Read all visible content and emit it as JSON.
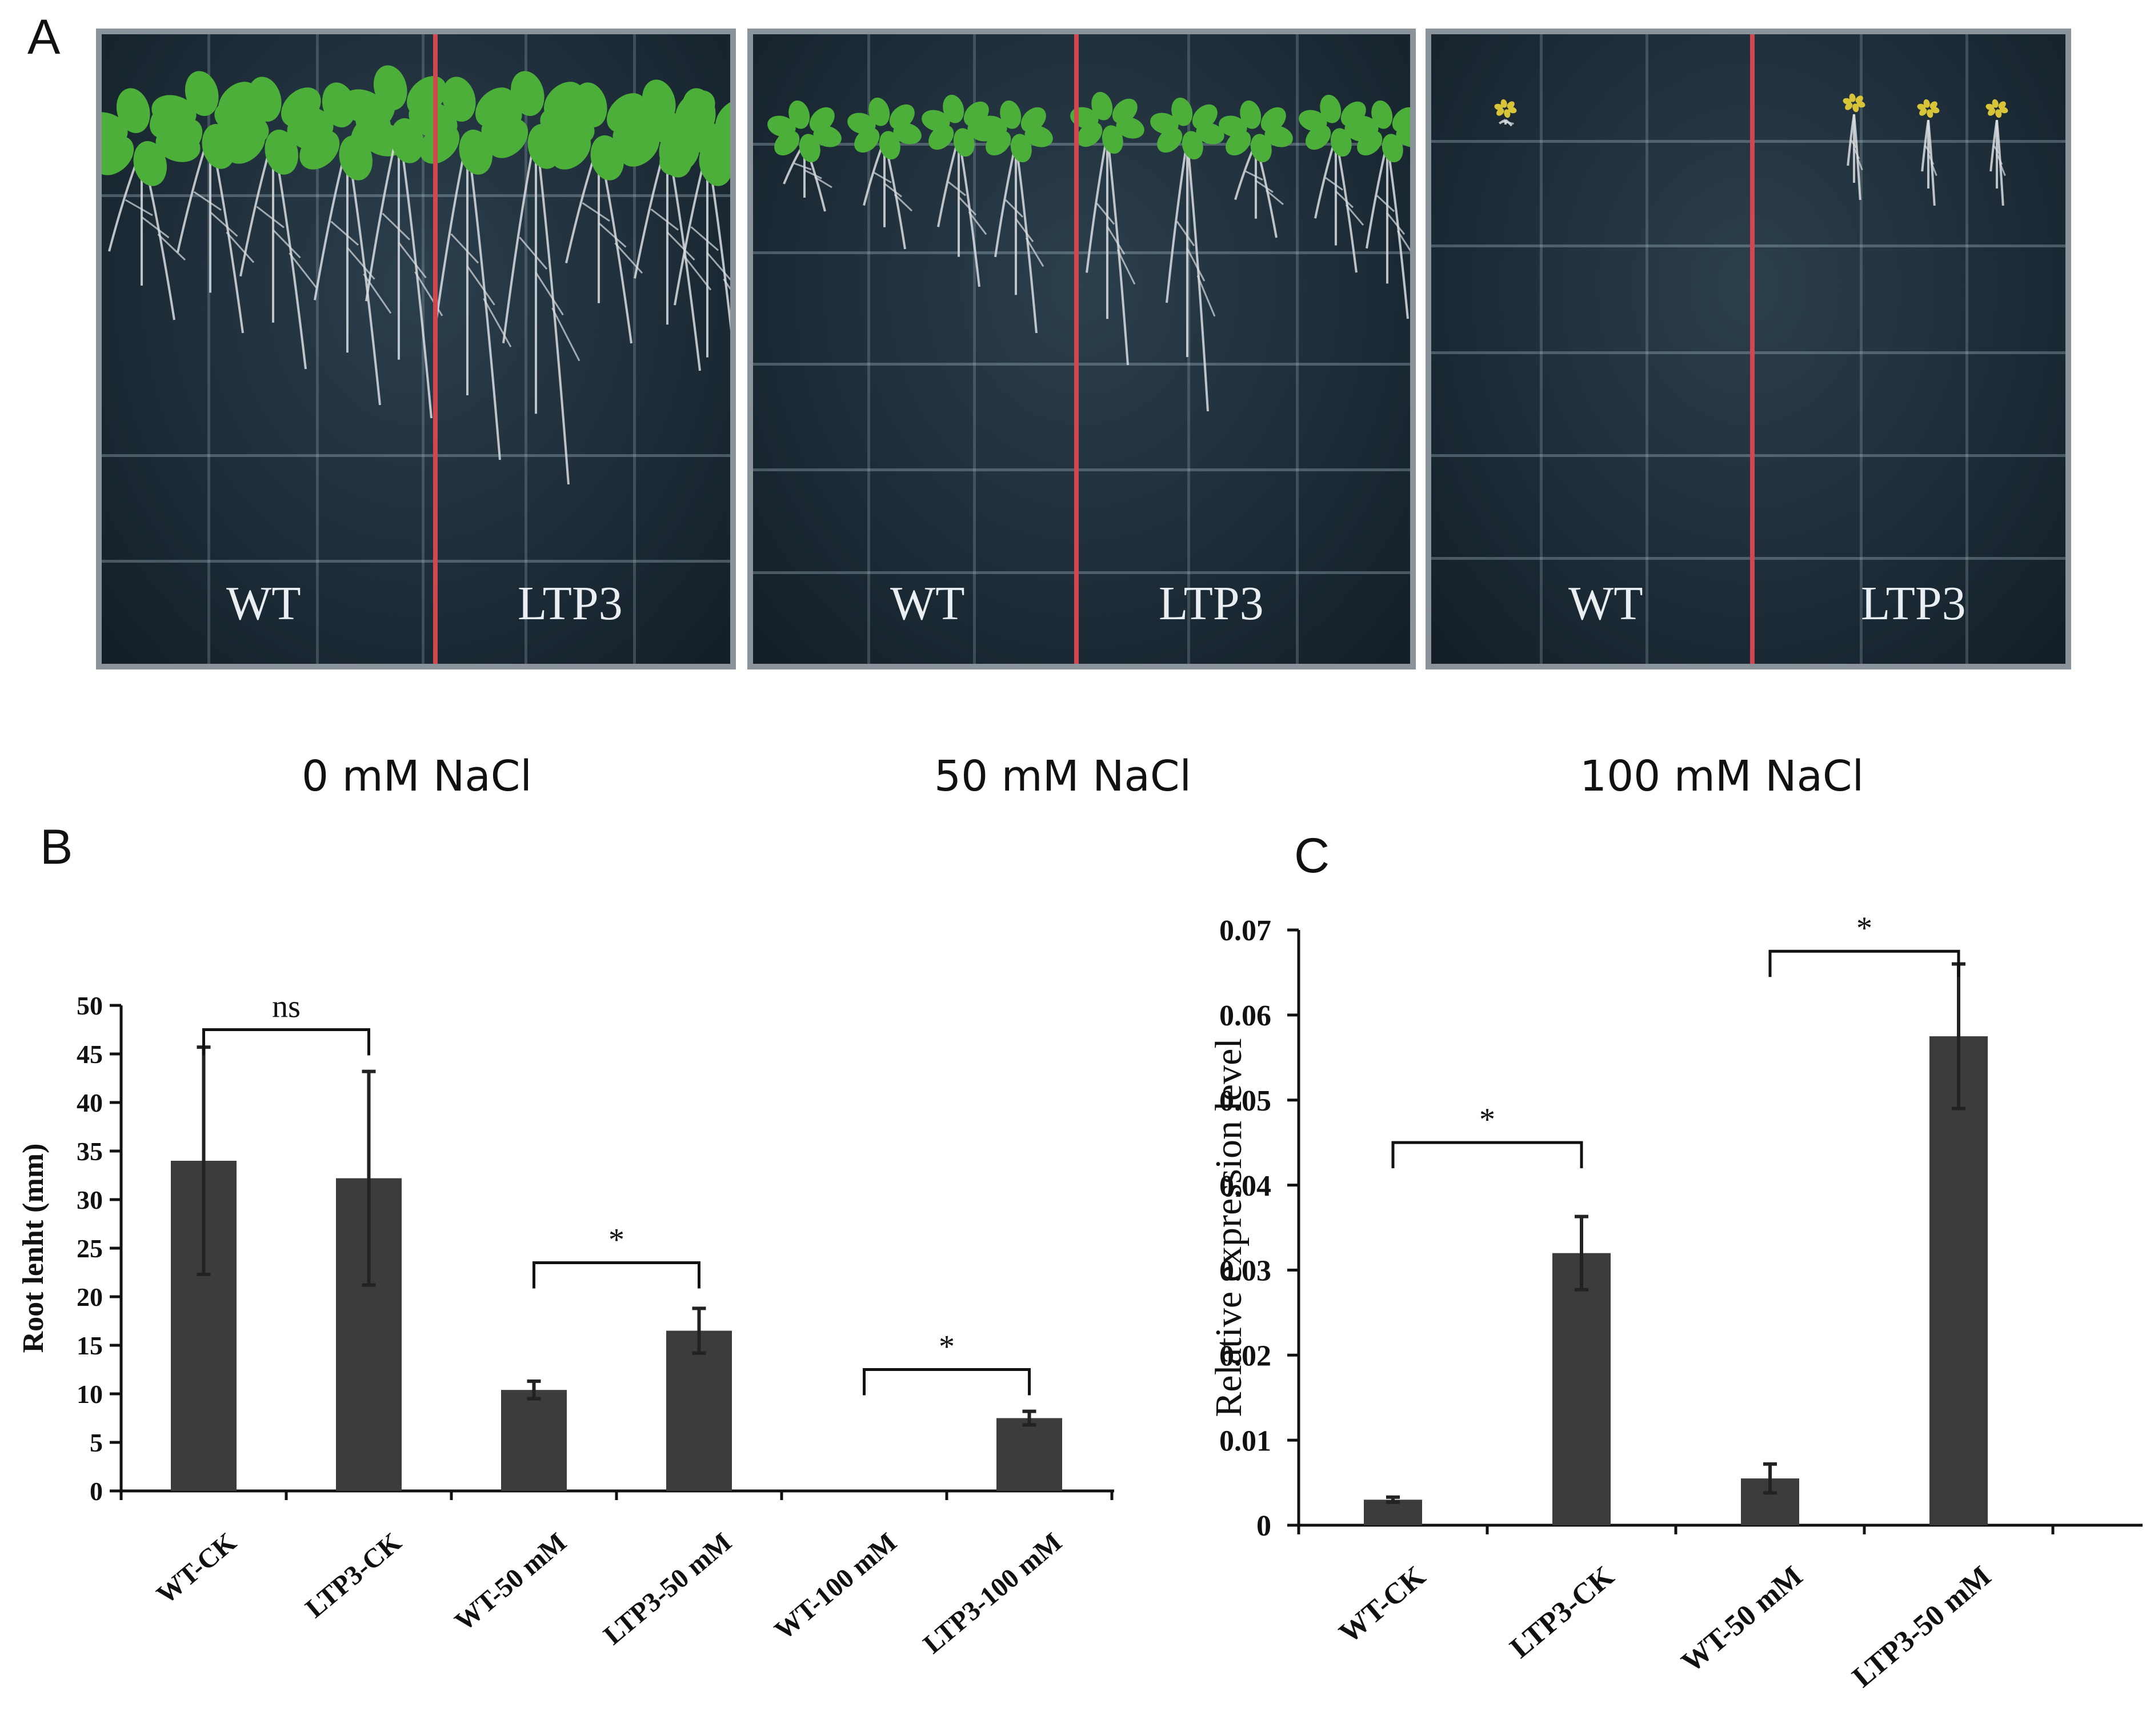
{
  "panel_letters": {
    "a": "A",
    "b": "B",
    "c": "C"
  },
  "plates": [
    {
      "left_label": "WT",
      "right_label": "LTP3",
      "condition": "0 mM NaCl"
    },
    {
      "left_label": "WT",
      "right_label": "LTP3",
      "condition": "50 mM NaCl"
    },
    {
      "left_label": "WT",
      "right_label": "LTP3",
      "condition": "100 mM NaCl"
    }
  ],
  "colors": {
    "bar": "#3c3c3c",
    "axis": "#111111",
    "divider": "#d0474f",
    "leaf": "#4caf3a",
    "root": "#d9dde0"
  },
  "chart_data": [
    {
      "id": "B",
      "type": "bar",
      "categories": [
        "WT-CK",
        "LTP3-CK",
        "WT-50 mM",
        "LTP3-50 mM",
        "WT-100 mM",
        "LTP3-100 mM"
      ],
      "values": [
        34,
        32.2,
        10.4,
        16.5,
        0,
        7.5
      ],
      "errors": [
        11.7,
        11,
        0.9,
        2.3,
        0,
        0.7
      ],
      "ylabel": "Root lenht (mm)",
      "ylim": [
        0,
        50
      ],
      "yticks": [
        0,
        5,
        10,
        15,
        20,
        25,
        30,
        35,
        40,
        45,
        50
      ],
      "ytick_labels": [
        "0",
        "5",
        "10",
        "15",
        "20",
        "25",
        "30",
        "35",
        "40",
        "45",
        "50"
      ],
      "significance": [
        {
          "pair": [
            0,
            1
          ],
          "label": "ns",
          "level": 47.5
        },
        {
          "pair": [
            2,
            3
          ],
          "label": "*",
          "level": 23.5
        },
        {
          "pair": [
            4,
            5
          ],
          "label": "*",
          "level": 12.5
        }
      ]
    },
    {
      "id": "C",
      "type": "bar",
      "categories": [
        "WT-CK",
        "LTP3-CK",
        "WT-50 mM",
        "LTP3-50 mM"
      ],
      "values": [
        0.003,
        0.032,
        0.0055,
        0.0575
      ],
      "errors": [
        0.0003,
        0.0043,
        0.0017,
        0.0085
      ],
      "ylabel": "Relative expression level",
      "ylim": [
        0,
        0.07
      ],
      "yticks": [
        0,
        0.01,
        0.02,
        0.03,
        0.04,
        0.05,
        0.06,
        0.07
      ],
      "ytick_labels": [
        "0",
        "0.01",
        "0.02",
        "0.03",
        "0.04",
        "0.05",
        "0.06",
        "0.07"
      ],
      "significance": [
        {
          "pair": [
            0,
            1
          ],
          "label": "*",
          "level": 0.045
        },
        {
          "pair": [
            2,
            3
          ],
          "label": "*",
          "level": 0.0675
        }
      ]
    }
  ]
}
